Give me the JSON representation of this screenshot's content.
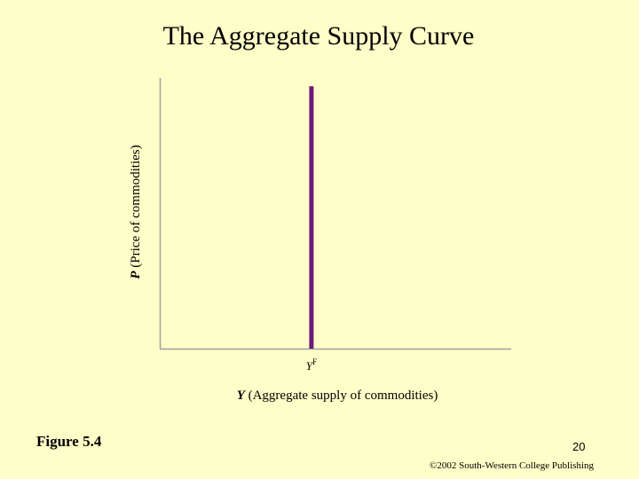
{
  "slide": {
    "title": "The Aggregate Supply Curve",
    "figure_label": "Figure 5.4",
    "page_number": "20",
    "copyright": "©2002 South-Western College Publishing"
  },
  "chart_data": {
    "type": "line",
    "title": "The Aggregate Supply Curve",
    "xlabel": {
      "variable": "Y",
      "text": " (Aggregate supply of commodities)"
    },
    "ylabel": {
      "variable": "P",
      "text": " (Price of commodities)"
    },
    "xlim": [
      0,
      1
    ],
    "ylim": [
      0,
      1
    ],
    "grid": false,
    "x_ticks": [
      {
        "value": 0.43,
        "label": "Y",
        "superscript": "F"
      }
    ],
    "series": [
      {
        "color": "#6b1a7a",
        "points": [
          {
            "x": 0.43,
            "y": 0
          },
          {
            "x": 0.43,
            "y": 0.97
          }
        ]
      }
    ]
  }
}
